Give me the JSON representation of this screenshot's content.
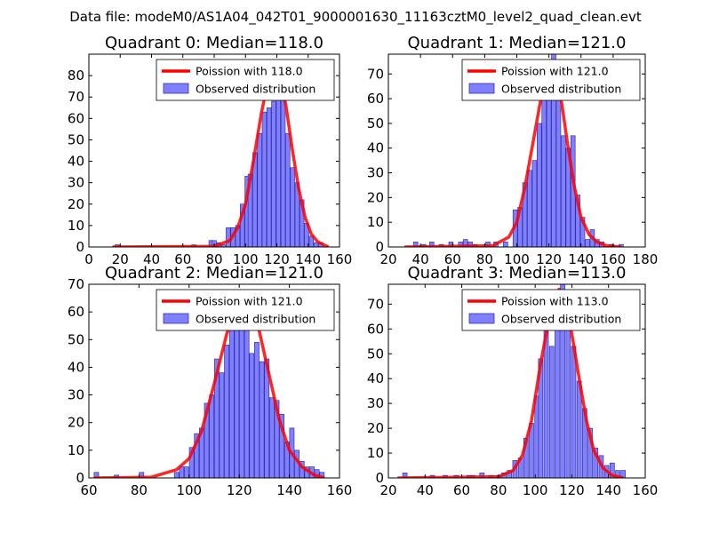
{
  "suptitle": "Data file: modeM0/AS1A04_042T01_9000001630_11163cztM0_level2_quad_clean.evt",
  "colors": {
    "bar_fill": "#8080ff",
    "bar_edge": "#3030b0",
    "curve": "#ff0000"
  },
  "chart_data": [
    {
      "type": "bar",
      "title": "Quadrant 0: Median=118.0",
      "xlim": [
        0,
        160
      ],
      "ylim": [
        0,
        90
      ],
      "xticks": [
        0,
        20,
        40,
        60,
        80,
        100,
        120,
        140,
        160
      ],
      "yticks": [
        0,
        10,
        20,
        30,
        40,
        50,
        60,
        70,
        80
      ],
      "legend": [
        "Poission with 118.0",
        "Observed distribution"
      ],
      "bin_width": 2.7,
      "bins": [
        [
          18,
          1
        ],
        [
          67,
          1
        ],
        [
          78,
          3
        ],
        [
          80,
          3
        ],
        [
          83,
          2
        ],
        [
          86,
          1
        ],
        [
          89,
          9
        ],
        [
          92,
          9
        ],
        [
          95,
          10
        ],
        [
          98,
          20
        ],
        [
          101,
          33
        ],
        [
          103,
          34
        ],
        [
          106,
          44
        ],
        [
          109,
          53
        ],
        [
          112,
          63
        ],
        [
          115,
          65
        ],
        [
          118,
          68
        ],
        [
          121,
          84
        ],
        [
          124,
          73
        ],
        [
          127,
          53
        ],
        [
          130,
          37
        ],
        [
          133,
          30
        ],
        [
          136,
          22
        ],
        [
          139,
          11
        ],
        [
          142,
          5
        ],
        [
          145,
          2
        ],
        [
          148,
          2
        ]
      ],
      "curve": [
        [
          15,
          0
        ],
        [
          80,
          0.3
        ],
        [
          90,
          3
        ],
        [
          95,
          9
        ],
        [
          100,
          20
        ],
        [
          105,
          40
        ],
        [
          110,
          62
        ],
        [
          115,
          80
        ],
        [
          118,
          85
        ],
        [
          122,
          81
        ],
        [
          126,
          65
        ],
        [
          130,
          45
        ],
        [
          134,
          27
        ],
        [
          138,
          14
        ],
        [
          142,
          6
        ],
        [
          146,
          2.5
        ],
        [
          150,
          1
        ],
        [
          153,
          0
        ]
      ]
    },
    {
      "type": "bar",
      "title": "Quadrant 1: Median=121.0",
      "xlim": [
        20,
        180
      ],
      "ylim": [
        0,
        78
      ],
      "xticks": [
        20,
        40,
        60,
        80,
        100,
        120,
        140,
        160,
        180
      ],
      "yticks": [
        0,
        10,
        20,
        30,
        40,
        50,
        60,
        70
      ],
      "legend": [
        "Poission with 121.0",
        "Observed distribution"
      ],
      "bin_width": 2.7,
      "bins": [
        [
          37,
          2
        ],
        [
          42,
          1
        ],
        [
          47,
          2
        ],
        [
          53,
          1
        ],
        [
          59,
          2
        ],
        [
          65,
          2
        ],
        [
          68,
          3
        ],
        [
          71,
          2
        ],
        [
          74,
          1
        ],
        [
          82,
          2
        ],
        [
          87,
          2
        ],
        [
          93,
          2
        ],
        [
          99,
          15
        ],
        [
          102,
          16
        ],
        [
          105,
          26
        ],
        [
          108,
          31
        ],
        [
          111,
          35
        ],
        [
          114,
          50
        ],
        [
          117,
          69
        ],
        [
          120,
          63
        ],
        [
          123,
          80
        ],
        [
          126,
          62
        ],
        [
          129,
          45
        ],
        [
          132,
          40
        ],
        [
          135,
          45
        ],
        [
          138,
          21
        ],
        [
          141,
          12
        ],
        [
          144,
          3
        ],
        [
          147,
          7
        ],
        [
          150,
          3
        ],
        [
          153,
          2
        ],
        [
          159,
          1
        ],
        [
          165,
          1
        ]
      ],
      "curve": [
        [
          30,
          0
        ],
        [
          85,
          0.5
        ],
        [
          95,
          4
        ],
        [
          100,
          10
        ],
        [
          105,
          24
        ],
        [
          110,
          42
        ],
        [
          115,
          60
        ],
        [
          119,
          70
        ],
        [
          121,
          72
        ],
        [
          124,
          70
        ],
        [
          128,
          58
        ],
        [
          132,
          40
        ],
        [
          136,
          24
        ],
        [
          140,
          12
        ],
        [
          145,
          5
        ],
        [
          150,
          2
        ],
        [
          156,
          0.5
        ],
        [
          165,
          0
        ]
      ]
    },
    {
      "type": "bar",
      "title": "Quadrant 2: Median=121.0",
      "xlim": [
        60,
        160
      ],
      "ylim": [
        0,
        70
      ],
      "xticks": [
        60,
        80,
        100,
        120,
        140,
        160
      ],
      "yticks": [
        0,
        10,
        20,
        30,
        40,
        50,
        60,
        70
      ],
      "legend": [
        "Poission with 121.0",
        "Observed distribution"
      ],
      "bin_width": 1.8,
      "bins": [
        [
          63,
          2
        ],
        [
          71,
          1
        ],
        [
          81,
          2
        ],
        [
          95,
          2
        ],
        [
          97,
          4
        ],
        [
          99,
          4
        ],
        [
          101,
          11
        ],
        [
          103,
          16
        ],
        [
          105,
          18
        ],
        [
          107,
          27
        ],
        [
          109,
          30
        ],
        [
          111,
          43
        ],
        [
          113,
          38
        ],
        [
          115,
          48
        ],
        [
          117,
          55
        ],
        [
          119,
          60
        ],
        [
          121,
          68
        ],
        [
          123,
          63
        ],
        [
          125,
          45
        ],
        [
          127,
          49
        ],
        [
          129,
          42
        ],
        [
          131,
          43
        ],
        [
          133,
          29
        ],
        [
          135,
          28
        ],
        [
          137,
          23
        ],
        [
          139,
          13
        ],
        [
          141,
          18
        ],
        [
          143,
          10
        ],
        [
          145,
          6
        ],
        [
          147,
          4
        ],
        [
          149,
          4
        ],
        [
          151,
          3
        ],
        [
          153,
          2
        ]
      ],
      "curve": [
        [
          62,
          0
        ],
        [
          85,
          0.3
        ],
        [
          95,
          3
        ],
        [
          100,
          7
        ],
        [
          105,
          17
        ],
        [
          110,
          34
        ],
        [
          115,
          52
        ],
        [
          119,
          64
        ],
        [
          121,
          66
        ],
        [
          124,
          64
        ],
        [
          128,
          53
        ],
        [
          132,
          37
        ],
        [
          136,
          21
        ],
        [
          140,
          10
        ],
        [
          145,
          4
        ],
        [
          150,
          1
        ],
        [
          154,
          0
        ]
      ]
    },
    {
      "type": "bar",
      "title": "Quadrant 3: Median=113.0",
      "xlim": [
        20,
        160
      ],
      "ylim": [
        0,
        78
      ],
      "xticks": [
        20,
        40,
        60,
        80,
        100,
        120,
        140,
        160
      ],
      "yticks": [
        0,
        10,
        20,
        30,
        40,
        50,
        60,
        70
      ],
      "legend": [
        "Poission with 113.0",
        "Observed distribution"
      ],
      "bin_width": 2.4,
      "bins": [
        [
          29,
          2
        ],
        [
          44,
          1
        ],
        [
          51,
          1
        ],
        [
          57,
          1
        ],
        [
          64,
          1
        ],
        [
          66,
          1
        ],
        [
          71,
          2
        ],
        [
          76,
          1
        ],
        [
          80,
          1
        ],
        [
          83,
          2
        ],
        [
          86,
          3
        ],
        [
          89,
          7
        ],
        [
          92,
          8
        ],
        [
          95,
          16
        ],
        [
          98,
          22
        ],
        [
          101,
          33
        ],
        [
          103,
          48
        ],
        [
          106,
          62
        ],
        [
          109,
          53
        ],
        [
          112,
          73
        ],
        [
          115,
          78
        ],
        [
          118,
          67
        ],
        [
          121,
          53
        ],
        [
          124,
          39
        ],
        [
          127,
          28
        ],
        [
          130,
          20
        ],
        [
          133,
          12
        ],
        [
          136,
          9
        ],
        [
          139,
          5
        ],
        [
          142,
          6
        ],
        [
          145,
          3
        ],
        [
          148,
          3
        ]
      ],
      "curve": [
        [
          25,
          0
        ],
        [
          80,
          0.5
        ],
        [
          88,
          3
        ],
        [
          93,
          9
        ],
        [
          98,
          23
        ],
        [
          103,
          46
        ],
        [
          108,
          66
        ],
        [
          111,
          74
        ],
        [
          113,
          76
        ],
        [
          116,
          73
        ],
        [
          120,
          58
        ],
        [
          124,
          40
        ],
        [
          128,
          23
        ],
        [
          132,
          11
        ],
        [
          137,
          4
        ],
        [
          142,
          1
        ],
        [
          148,
          0
        ]
      ]
    }
  ]
}
